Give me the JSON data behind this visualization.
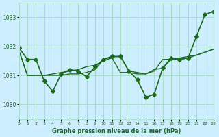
{
  "title": "Graphe pression niveau de la mer (hPa)",
  "background_color": "#cceeff",
  "grid_color": "#aaddcc",
  "line_color": "#1a6b1a",
  "xlim": [
    0,
    23
  ],
  "ylim": [
    1029.5,
    1033.5
  ],
  "yticks": [
    1030,
    1031,
    1032,
    1033
  ],
  "xticks": [
    0,
    1,
    2,
    3,
    4,
    5,
    6,
    7,
    8,
    9,
    10,
    11,
    12,
    13,
    14,
    15,
    16,
    17,
    18,
    19,
    20,
    21,
    22,
    23
  ],
  "series": [
    {
      "x": [
        0,
        1,
        2,
        3,
        4,
        5,
        6,
        7,
        8,
        9,
        10,
        11,
        12,
        13,
        14,
        15,
        16,
        17,
        18,
        19,
        20,
        21,
        22,
        23
      ],
      "y": [
        1031.95,
        1031.55,
        1031.55,
        1030.8,
        1030.45,
        1031.05,
        1031.2,
        1031.15,
        1030.95,
        1031.3,
        1031.55,
        1031.65,
        1031.65,
        1031.15,
        1030.85,
        1030.25,
        1030.35,
        1031.25,
        1031.6,
        1031.55,
        1031.6,
        1032.35,
        1033.1,
        1033.2
      ],
      "marker": "D",
      "markersize": 3,
      "linewidth": 1.2
    },
    {
      "x": [
        0,
        1,
        2,
        3,
        4,
        5,
        6,
        7,
        8,
        9,
        10,
        11,
        12,
        13,
        14,
        15,
        16,
        17,
        18,
        19,
        20,
        21,
        22,
        23
      ],
      "y": [
        1031.85,
        1031.0,
        1031.0,
        1031.0,
        1031.0,
        1031.0,
        1031.05,
        1031.05,
        1031.1,
        1031.2,
        1031.55,
        1031.65,
        1031.65,
        1031.15,
        1031.1,
        1031.05,
        1031.15,
        1031.55,
        1031.55,
        1031.55,
        1031.6,
        1031.7,
        1031.8,
        1031.9
      ],
      "marker": null,
      "markersize": 0,
      "linewidth": 1.0
    },
    {
      "x": [
        0,
        1,
        2,
        3,
        4,
        5,
        6,
        7,
        8,
        9,
        10,
        11,
        12,
        13,
        14,
        15,
        16,
        17,
        18,
        19,
        20,
        21,
        22,
        23
      ],
      "y": [
        1031.85,
        1031.0,
        1031.0,
        1031.0,
        1031.05,
        1031.1,
        1031.15,
        1031.2,
        1031.3,
        1031.35,
        1031.5,
        1031.6,
        1031.1,
        1031.1,
        1031.05,
        1031.05,
        1031.2,
        1031.25,
        1031.55,
        1031.6,
        1031.65,
        1031.7,
        1031.8,
        1031.9
      ],
      "marker": null,
      "markersize": 0,
      "linewidth": 1.0
    }
  ]
}
